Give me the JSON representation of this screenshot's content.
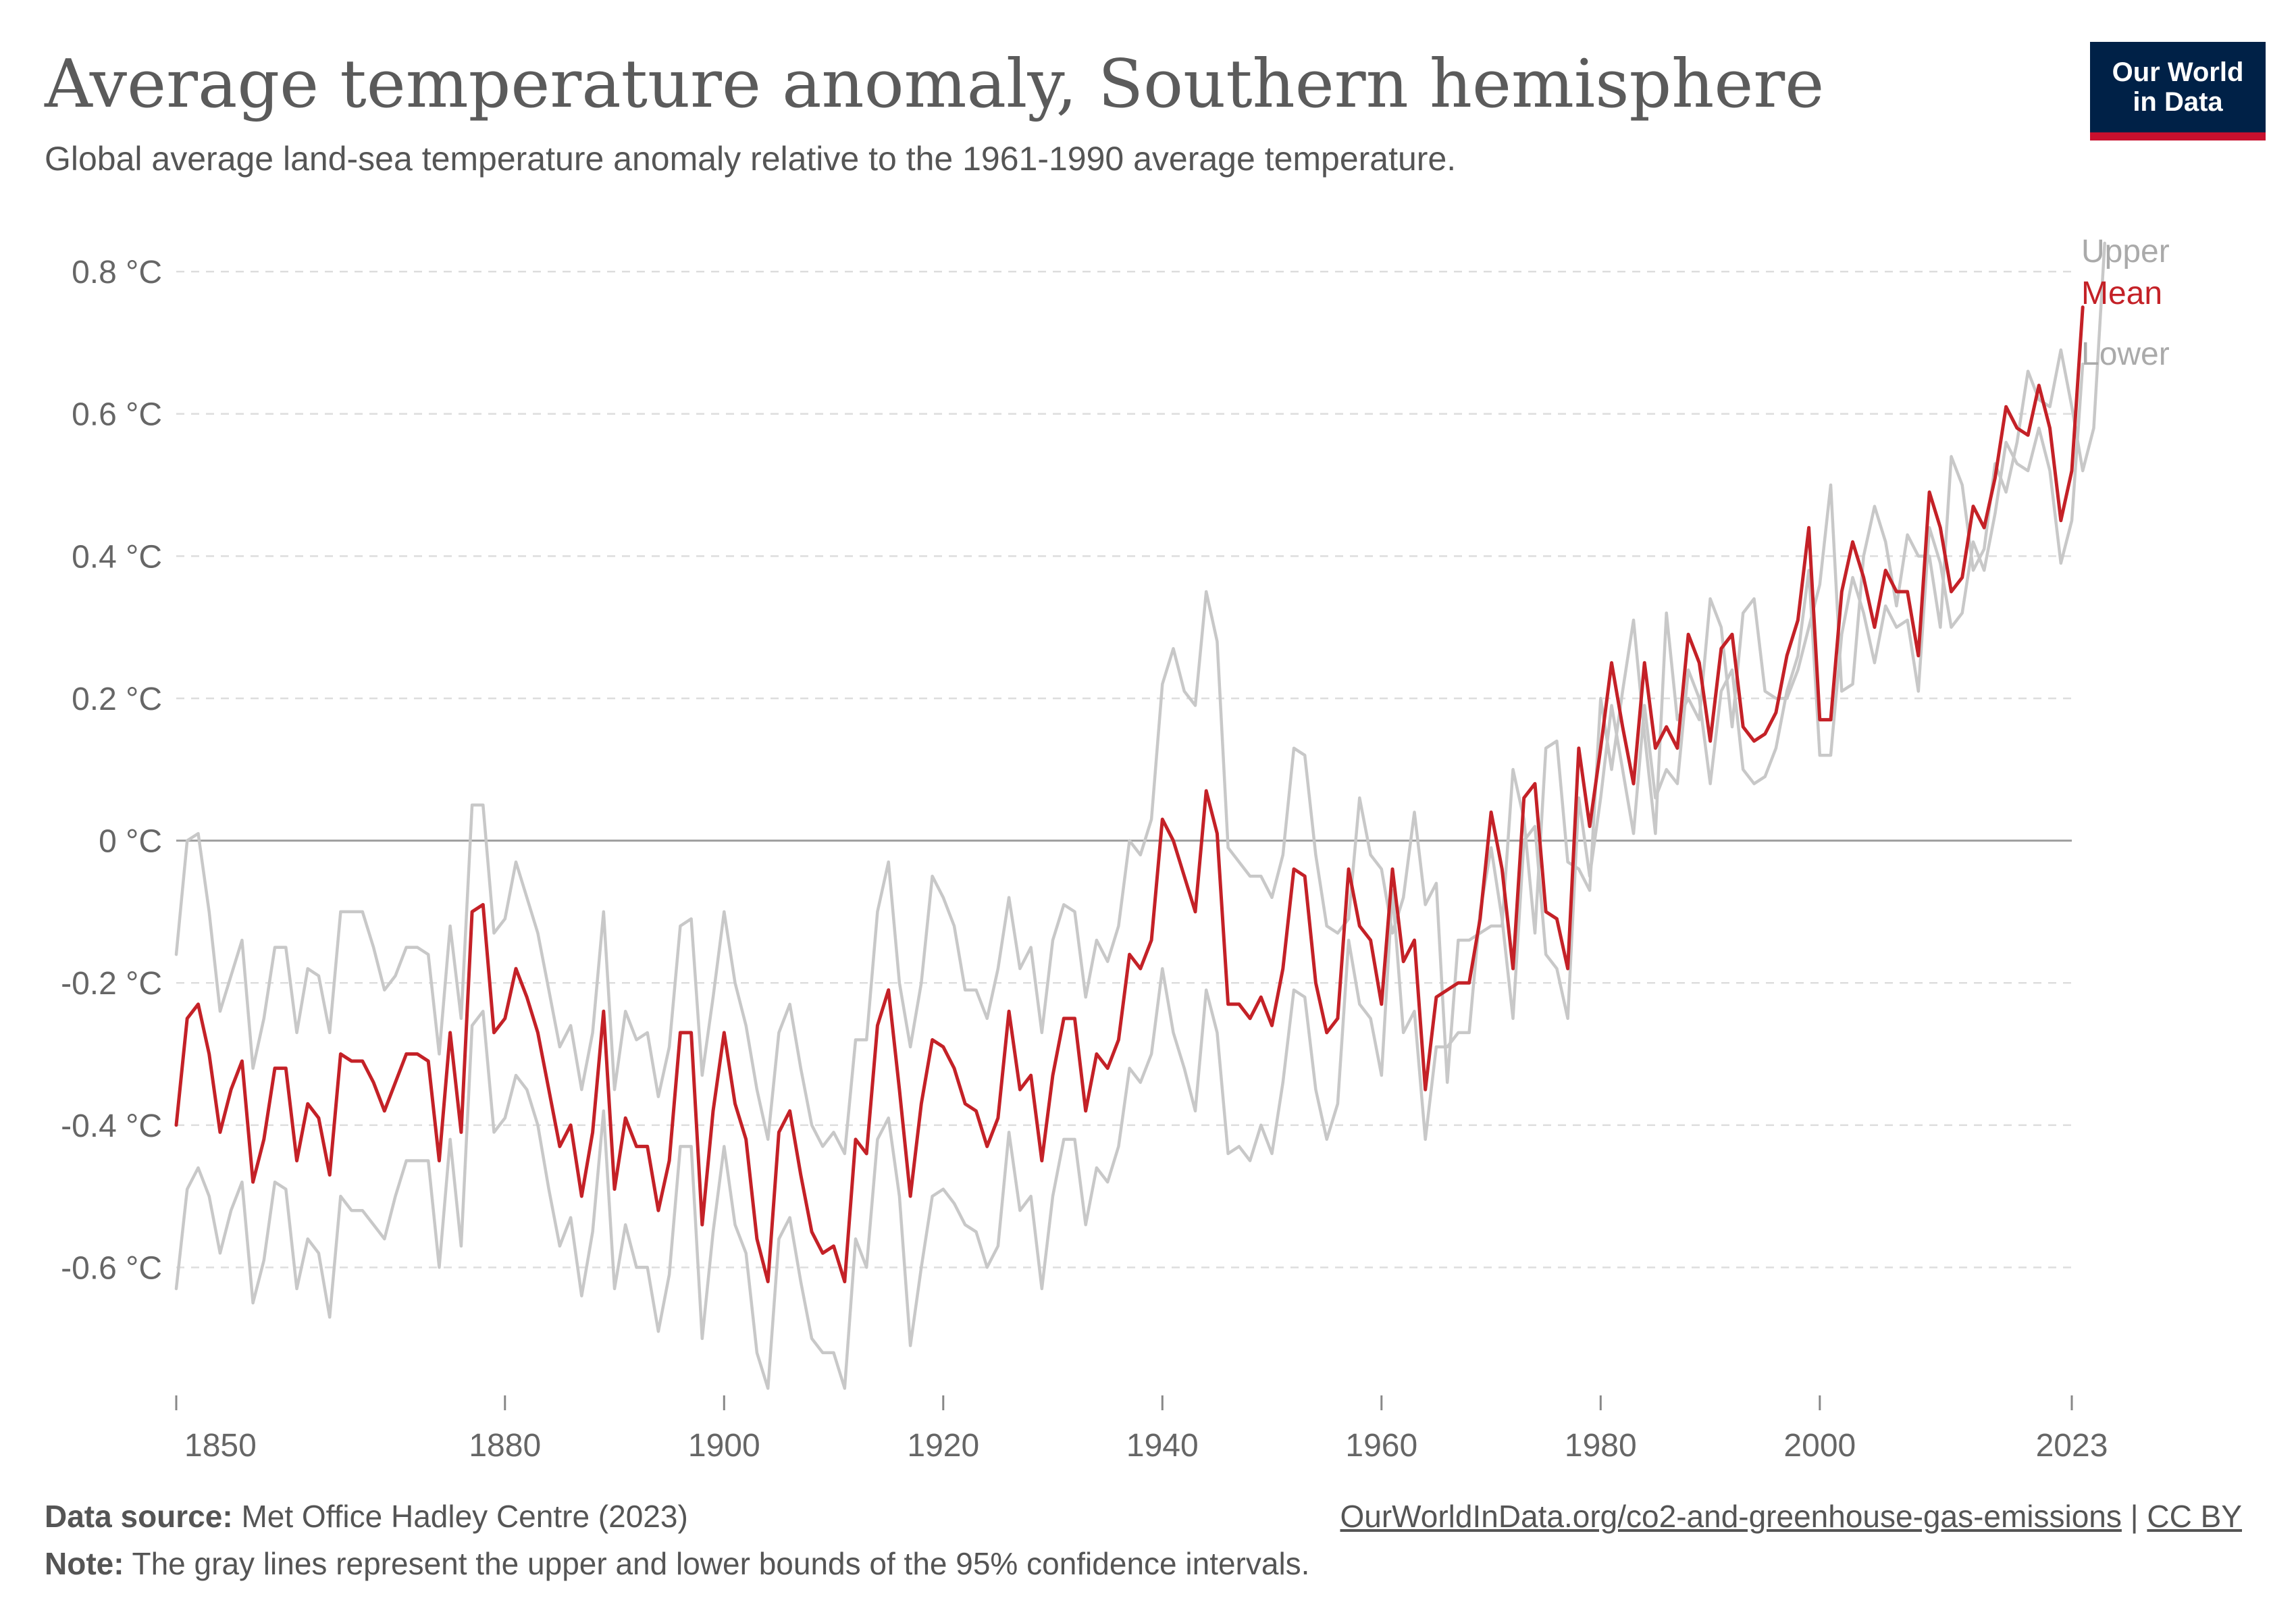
{
  "header": {
    "title": "Average temperature anomaly, Southern hemisphere",
    "subtitle": "Global average land-sea temperature anomaly relative to the 1961-1990 average temperature.",
    "logo_line1": "Our World",
    "logo_line2": "in Data"
  },
  "footer": {
    "source_label": "Data source:",
    "source_text": "Met Office Hadley Centre (2023)",
    "note_label": "Note:",
    "note_text": "The gray lines represent the upper and lower bounds of the 95% confidence intervals.",
    "link_text": "OurWorldInData.org/co2-and-greenhouse-gas-emissions",
    "separator": "|",
    "license_text": "CC BY"
  },
  "chart_data": {
    "type": "line",
    "title": "Average temperature anomaly, Southern hemisphere",
    "xlabel": "",
    "ylabel": "",
    "xlim": [
      1850,
      2023
    ],
    "ylim": [
      -0.78,
      0.84
    ],
    "grid": true,
    "legend": "right",
    "x_ticks": [
      1850,
      1880,
      1900,
      1920,
      1940,
      1960,
      1980,
      2000,
      2023
    ],
    "x_tick_labels": [
      "1850",
      "1880",
      "1900",
      "1920",
      "1940",
      "1960",
      "1980",
      "2000",
      "2023"
    ],
    "y_ticks": [
      -0.6,
      -0.4,
      -0.2,
      0,
      0.2,
      0.4,
      0.6,
      0.8
    ],
    "y_tick_labels": [
      "-0.6 °C",
      "-0.4 °C",
      "-0.2 °C",
      "0 °C",
      "0.2 °C",
      "0.4 °C",
      "0.6 °C",
      "0.8 °C"
    ],
    "x_start": 1850,
    "series": [
      {
        "name": "Upper",
        "color": "#c8c8c8",
        "values": [
          -0.16,
          0.0,
          0.01,
          -0.1,
          -0.24,
          -0.19,
          -0.14,
          -0.32,
          -0.25,
          -0.15,
          -0.15,
          -0.27,
          -0.18,
          -0.19,
          -0.27,
          -0.1,
          -0.1,
          -0.1,
          -0.15,
          -0.21,
          -0.19,
          -0.15,
          -0.15,
          -0.16,
          -0.3,
          -0.12,
          -0.25,
          0.05,
          0.05,
          -0.13,
          -0.11,
          -0.03,
          -0.08,
          -0.13,
          -0.21,
          -0.29,
          -0.26,
          -0.35,
          -0.27,
          -0.1,
          -0.35,
          -0.24,
          -0.28,
          -0.27,
          -0.36,
          -0.29,
          -0.12,
          -0.11,
          -0.33,
          -0.22,
          -0.1,
          -0.2,
          -0.26,
          -0.35,
          -0.42,
          -0.27,
          -0.23,
          -0.32,
          -0.4,
          -0.43,
          -0.41,
          -0.44,
          -0.28,
          -0.28,
          -0.1,
          -0.03,
          -0.2,
          -0.29,
          -0.2,
          -0.05,
          -0.08,
          -0.12,
          -0.21,
          -0.21,
          -0.25,
          -0.18,
          -0.08,
          -0.18,
          -0.15,
          -0.27,
          -0.14,
          -0.09,
          -0.1,
          -0.22,
          -0.14,
          -0.17,
          -0.12,
          -0.0,
          -0.02,
          0.03,
          0.22,
          0.27,
          0.21,
          0.19,
          0.35,
          0.28,
          -0.01,
          -0.03,
          -0.05,
          -0.05,
          -0.08,
          -0.02,
          0.13,
          0.12,
          -0.02,
          -0.12,
          -0.13,
          -0.11,
          0.06,
          -0.02,
          -0.04,
          -0.13,
          -0.08,
          0.04,
          -0.09,
          -0.06,
          -0.34,
          -0.14,
          -0.14,
          -0.13,
          -0.12,
          -0.12,
          0.1,
          0.03,
          -0.13,
          0.13,
          0.14,
          -0.03,
          -0.04,
          -0.07,
          0.2,
          0.1,
          0.21,
          0.31,
          0.15,
          0.01,
          0.32,
          0.17,
          0.2,
          0.17,
          0.34,
          0.3,
          0.16,
          0.32,
          0.34,
          0.21,
          0.2,
          0.2,
          0.24,
          0.3,
          0.36,
          0.5,
          0.21,
          0.22,
          0.4,
          0.47,
          0.42,
          0.33,
          0.43,
          0.4,
          0.4,
          0.3,
          0.54,
          0.5,
          0.38,
          0.41,
          0.53,
          0.49,
          0.56,
          0.66,
          0.62,
          0.61,
          0.69,
          0.61,
          0.52,
          0.58,
          0.84
        ]
      },
      {
        "name": "Mean",
        "color": "#c42127",
        "values": [
          -0.4,
          -0.25,
          -0.23,
          -0.3,
          -0.41,
          -0.35,
          -0.31,
          -0.48,
          -0.42,
          -0.32,
          -0.32,
          -0.45,
          -0.37,
          -0.39,
          -0.47,
          -0.3,
          -0.31,
          -0.31,
          -0.34,
          -0.38,
          -0.34,
          -0.3,
          -0.3,
          -0.31,
          -0.45,
          -0.27,
          -0.41,
          -0.1,
          -0.09,
          -0.27,
          -0.25,
          -0.18,
          -0.22,
          -0.27,
          -0.35,
          -0.43,
          -0.4,
          -0.5,
          -0.41,
          -0.24,
          -0.49,
          -0.39,
          -0.43,
          -0.43,
          -0.52,
          -0.45,
          -0.27,
          -0.27,
          -0.54,
          -0.38,
          -0.27,
          -0.37,
          -0.42,
          -0.56,
          -0.62,
          -0.41,
          -0.38,
          -0.47,
          -0.55,
          -0.58,
          -0.57,
          -0.62,
          -0.42,
          -0.44,
          -0.26,
          -0.21,
          -0.35,
          -0.5,
          -0.37,
          -0.28,
          -0.29,
          -0.32,
          -0.37,
          -0.38,
          -0.43,
          -0.39,
          -0.24,
          -0.35,
          -0.33,
          -0.45,
          -0.33,
          -0.25,
          -0.25,
          -0.38,
          -0.3,
          -0.32,
          -0.28,
          -0.16,
          -0.18,
          -0.14,
          0.03,
          0.0,
          -0.05,
          -0.1,
          0.07,
          0.01,
          -0.23,
          -0.23,
          -0.25,
          -0.22,
          -0.26,
          -0.18,
          -0.04,
          -0.05,
          -0.2,
          -0.27,
          -0.25,
          -0.04,
          -0.12,
          -0.14,
          -0.23,
          -0.04,
          -0.17,
          -0.14,
          -0.35,
          -0.22,
          -0.21,
          -0.2,
          -0.2,
          -0.11,
          0.04,
          -0.04,
          -0.18,
          0.06,
          0.08,
          -0.1,
          -0.11,
          -0.18,
          0.13,
          0.02,
          0.13,
          0.25,
          0.16,
          0.08,
          0.25,
          0.13,
          0.16,
          0.13,
          0.29,
          0.25,
          0.14,
          0.27,
          0.29,
          0.16,
          0.14,
          0.15,
          0.18,
          0.26,
          0.31,
          0.44,
          0.17,
          0.17,
          0.35,
          0.42,
          0.37,
          0.3,
          0.38,
          0.35,
          0.35,
          0.26,
          0.49,
          0.44,
          0.35,
          0.37,
          0.47,
          0.44,
          0.51,
          0.61,
          0.58,
          0.57,
          0.64,
          0.58,
          0.45,
          0.52,
          0.75
        ]
      },
      {
        "name": "Lower",
        "color": "#c8c8c8",
        "values": [
          -0.63,
          -0.49,
          -0.46,
          -0.5,
          -0.58,
          -0.52,
          -0.48,
          -0.65,
          -0.59,
          -0.48,
          -0.49,
          -0.63,
          -0.56,
          -0.58,
          -0.67,
          -0.5,
          -0.52,
          -0.52,
          -0.54,
          -0.56,
          -0.5,
          -0.45,
          -0.45,
          -0.45,
          -0.6,
          -0.42,
          -0.57,
          -0.26,
          -0.24,
          -0.41,
          -0.39,
          -0.33,
          -0.35,
          -0.4,
          -0.49,
          -0.57,
          -0.53,
          -0.64,
          -0.55,
          -0.38,
          -0.63,
          -0.54,
          -0.6,
          -0.6,
          -0.69,
          -0.61,
          -0.43,
          -0.43,
          -0.7,
          -0.55,
          -0.43,
          -0.54,
          -0.58,
          -0.72,
          -0.77,
          -0.56,
          -0.53,
          -0.62,
          -0.7,
          -0.72,
          -0.72,
          -0.77,
          -0.56,
          -0.6,
          -0.42,
          -0.39,
          -0.5,
          -0.71,
          -0.6,
          -0.5,
          -0.49,
          -0.51,
          -0.54,
          -0.55,
          -0.6,
          -0.57,
          -0.41,
          -0.52,
          -0.5,
          -0.63,
          -0.5,
          -0.42,
          -0.42,
          -0.54,
          -0.46,
          -0.48,
          -0.43,
          -0.32,
          -0.34,
          -0.3,
          -0.18,
          -0.27,
          -0.32,
          -0.38,
          -0.21,
          -0.27,
          -0.44,
          -0.43,
          -0.45,
          -0.4,
          -0.44,
          -0.34,
          -0.21,
          -0.22,
          -0.35,
          -0.42,
          -0.37,
          -0.14,
          -0.23,
          -0.25,
          -0.33,
          -0.07,
          -0.27,
          -0.24,
          -0.42,
          -0.29,
          -0.29,
          -0.27,
          -0.27,
          -0.1,
          -0.01,
          -0.11,
          -0.25,
          -0.0,
          0.02,
          -0.16,
          -0.18,
          -0.25,
          0.06,
          -0.05,
          0.06,
          0.19,
          0.1,
          0.01,
          0.19,
          0.06,
          0.1,
          0.08,
          0.24,
          0.2,
          0.08,
          0.21,
          0.24,
          0.1,
          0.08,
          0.09,
          0.13,
          0.21,
          0.26,
          0.38,
          0.12,
          0.12,
          0.29,
          0.37,
          0.32,
          0.25,
          0.33,
          0.3,
          0.31,
          0.21,
          0.44,
          0.39,
          0.3,
          0.32,
          0.42,
          0.38,
          0.46,
          0.56,
          0.53,
          0.52,
          0.58,
          0.52,
          0.39,
          0.45,
          0.67
        ]
      }
    ],
    "legend_entries": [
      {
        "label": "Upper",
        "color": "#aaaaaa"
      },
      {
        "label": "Mean",
        "color": "#c42127"
      },
      {
        "label": "Lower",
        "color": "#aaaaaa"
      }
    ]
  }
}
